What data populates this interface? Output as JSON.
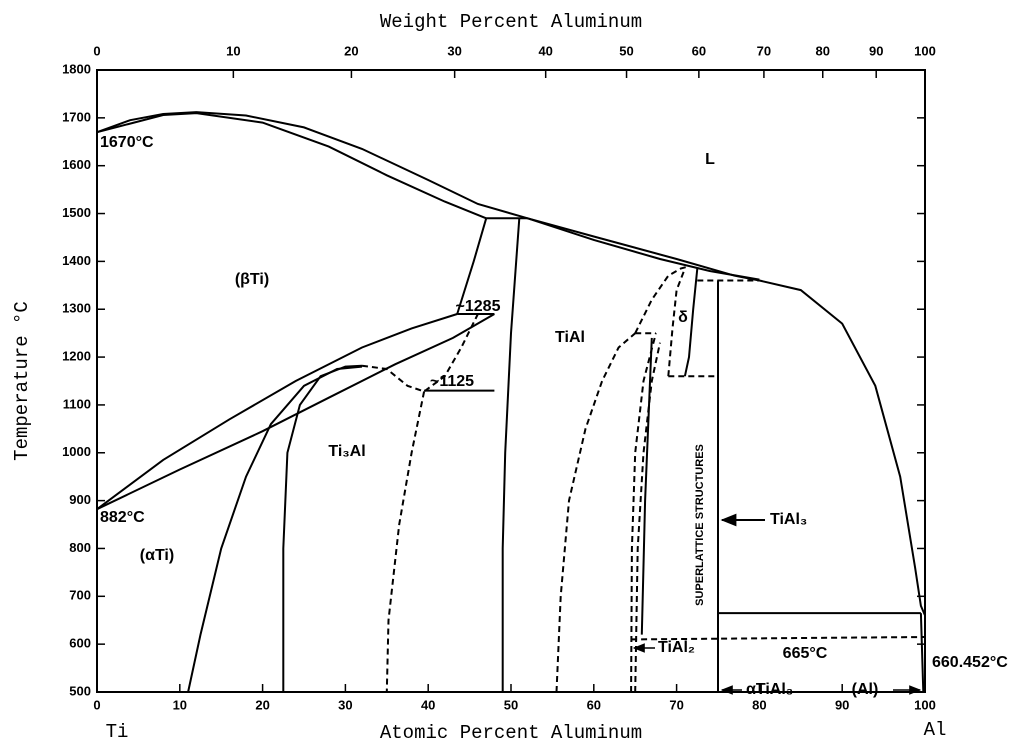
{
  "chart_data": {
    "type": "line",
    "top_axis_label": "Weight Percent Aluminum",
    "x_label": "Atomic Percent Aluminum",
    "y_label": "Temperature °C",
    "xlim": [
      0,
      100
    ],
    "xticks": [
      0,
      10,
      20,
      30,
      40,
      50,
      60,
      70,
      80,
      90,
      100
    ],
    "x2ticks": [
      0,
      10,
      20,
      30,
      40,
      50,
      60,
      70,
      80,
      90,
      100
    ],
    "ylim": [
      500,
      1800
    ],
    "yticks": [
      500,
      600,
      700,
      800,
      900,
      1000,
      1100,
      1200,
      1300,
      1400,
      1500,
      1600,
      1700,
      1800
    ],
    "color": "#000000",
    "annotations": [
      "1670°C",
      "L",
      "(βTi)",
      "~1285",
      "~1125",
      "TiAl",
      "Ti₃Al",
      "882°C",
      "(αTi)",
      "δ",
      "SUPERLATTICE STRUCTURES",
      "TiAl₃",
      "665°C",
      "660.452°C",
      "TiAl₂",
      "αTiAl₃",
      "(Al)",
      "Ti",
      "Al"
    ],
    "series": [
      {
        "dashed": false,
        "x": [
          0,
          4,
          8,
          12,
          18,
          25,
          32,
          40,
          46,
          52,
          60,
          70,
          77,
          80
        ],
        "values": [
          1670,
          1695,
          1708,
          1712,
          1705,
          1680,
          1635,
          1570,
          1520,
          1490,
          1452,
          1405,
          1370,
          1360
        ]
      },
      {
        "dashed": false,
        "x": [
          0,
          8,
          12,
          20,
          28,
          35,
          42,
          47
        ],
        "values": [
          1670,
          1706,
          1710,
          1690,
          1640,
          1580,
          1525,
          1490
        ]
      },
      {
        "dashed": false,
        "x": [
          52,
          60,
          68,
          74,
          80
        ],
        "values": [
          1490,
          1445,
          1405,
          1380,
          1362
        ]
      },
      {
        "dashed": false,
        "x": [
          47,
          52
        ],
        "values": [
          1490,
          1490
        ]
      },
      {
        "dashed": false,
        "x": [
          47,
          45.5,
          43.5
        ],
        "values": [
          1490,
          1400,
          1290
        ]
      },
      {
        "dashed": false,
        "x": [
          51,
          50,
          49.3,
          49,
          49
        ],
        "values": [
          1490,
          1250,
          1000,
          800,
          500
        ]
      },
      {
        "dashed": false,
        "x": [
          43.5,
          48
        ],
        "values": [
          1290,
          1290
        ]
      },
      {
        "dashed": false,
        "x": [
          0,
          8,
          16,
          24,
          32,
          38,
          43.5
        ],
        "values": [
          882,
          985,
          1070,
          1150,
          1220,
          1260,
          1290
        ]
      },
      {
        "dashed": false,
        "x": [
          0,
          10,
          20,
          28,
          36,
          43,
          48
        ],
        "values": [
          882,
          965,
          1045,
          1115,
          1185,
          1240,
          1290
        ]
      },
      {
        "dashed": false,
        "x": [
          11,
          12.5,
          15,
          18,
          21,
          25,
          29,
          32
        ],
        "values": [
          500,
          620,
          800,
          950,
          1060,
          1140,
          1175,
          1180
        ]
      },
      {
        "dashed": false,
        "x": [
          22.5,
          22.5,
          23,
          24.5,
          27,
          30,
          32
        ],
        "values": [
          500,
          800,
          1000,
          1100,
          1160,
          1180,
          1182
        ]
      },
      {
        "dashed": true,
        "x": [
          32,
          35,
          37.5,
          39.5,
          42,
          44,
          46
        ],
        "values": [
          1182,
          1175,
          1140,
          1128,
          1160,
          1220,
          1290
        ]
      },
      {
        "dashed": true,
        "x": [
          39.5,
          38,
          36.5,
          35.2,
          35
        ],
        "values": [
          1128,
          1000,
          850,
          650,
          500
        ]
      },
      {
        "dashed": false,
        "x": [
          39.5,
          48
        ],
        "values": [
          1130,
          1130
        ]
      },
      {
        "dashed": true,
        "x": [
          55.5,
          56,
          57,
          59,
          61,
          63,
          65
        ],
        "values": [
          500,
          700,
          900,
          1050,
          1150,
          1220,
          1250
        ]
      },
      {
        "dashed": true,
        "x": [
          65,
          67,
          69,
          70.5,
          71.5
        ],
        "values": [
          1250,
          1320,
          1370,
          1385,
          1390
        ]
      },
      {
        "dashed": true,
        "x": [
          65,
          67.5
        ],
        "values": [
          1250,
          1250
        ]
      },
      {
        "dashed": true,
        "x": [
          64.5,
          64.6,
          65,
          66,
          67.5
        ],
        "values": [
          500,
          800,
          1000,
          1150,
          1250
        ]
      },
      {
        "dashed": true,
        "x": [
          65,
          65.3,
          66,
          67,
          68
        ],
        "values": [
          500,
          800,
          1000,
          1150,
          1230
        ]
      },
      {
        "dashed": false,
        "x": [
          67,
          66.2,
          65.8
        ],
        "values": [
          1240,
          900,
          620
        ]
      },
      {
        "dashed": true,
        "x": [
          69,
          69.5,
          70,
          71
        ],
        "values": [
          1160,
          1260,
          1340,
          1385
        ]
      },
      {
        "dashed": false,
        "x": [
          72.5,
          72,
          71.5,
          71
        ],
        "values": [
          1385,
          1300,
          1200,
          1160
        ]
      },
      {
        "dashed": true,
        "x": [
          69,
          75
        ],
        "values": [
          1160,
          1160
        ]
      },
      {
        "dashed": false,
        "x": [
          75,
          75
        ],
        "values": [
          500,
          1360
        ]
      },
      {
        "dashed": true,
        "x": [
          72.5,
          80
        ],
        "values": [
          1360,
          1360
        ]
      },
      {
        "dashed": false,
        "x": [
          80,
          85,
          90,
          94,
          97,
          98.8,
          99.5,
          100
        ],
        "values": [
          1360,
          1340,
          1270,
          1140,
          950,
          760,
          680,
          660
        ]
      },
      {
        "dashed": false,
        "x": [
          75,
          99.5
        ],
        "values": [
          665,
          665
        ]
      },
      {
        "dashed": true,
        "x": [
          64.5,
          100
        ],
        "values": [
          610,
          615
        ]
      },
      {
        "dashed": false,
        "x": [
          99.5,
          99.8
        ],
        "values": [
          665,
          500
        ]
      }
    ]
  }
}
